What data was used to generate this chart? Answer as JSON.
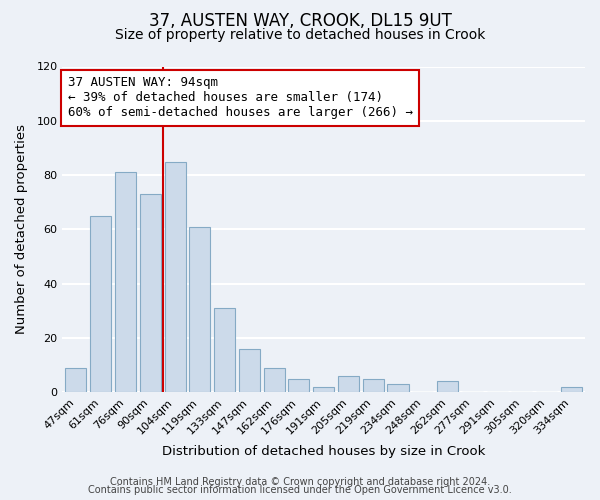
{
  "title": "37, AUSTEN WAY, CROOK, DL15 9UT",
  "subtitle": "Size of property relative to detached houses in Crook",
  "xlabel": "Distribution of detached houses by size in Crook",
  "ylabel": "Number of detached properties",
  "categories": [
    "47sqm",
    "61sqm",
    "76sqm",
    "90sqm",
    "104sqm",
    "119sqm",
    "133sqm",
    "147sqm",
    "162sqm",
    "176sqm",
    "191sqm",
    "205sqm",
    "219sqm",
    "234sqm",
    "248sqm",
    "262sqm",
    "277sqm",
    "291sqm",
    "305sqm",
    "320sqm",
    "334sqm"
  ],
  "values": [
    9,
    65,
    81,
    73,
    85,
    61,
    31,
    16,
    9,
    5,
    2,
    6,
    5,
    3,
    0,
    4,
    0,
    0,
    0,
    0,
    2
  ],
  "bar_color": "#ccdaea",
  "bar_edge_color": "#85aac5",
  "property_line_x": 3.5,
  "property_line_color": "#cc0000",
  "ylim": [
    0,
    120
  ],
  "annotation_line1": "37 AUSTEN WAY: 94sqm",
  "annotation_line2": "← 39% of detached houses are smaller (174)",
  "annotation_line3": "60% of semi-detached houses are larger (266) →",
  "annotation_box_color": "#ffffff",
  "annotation_box_edge_color": "#cc0000",
  "footer_line1": "Contains HM Land Registry data © Crown copyright and database right 2024.",
  "footer_line2": "Contains public sector information licensed under the Open Government Licence v3.0.",
  "background_color": "#edf1f7",
  "grid_color": "#ffffff",
  "title_fontsize": 12,
  "subtitle_fontsize": 10,
  "axis_label_fontsize": 9.5,
  "tick_fontsize": 8,
  "annotation_fontsize": 9,
  "footer_fontsize": 7
}
